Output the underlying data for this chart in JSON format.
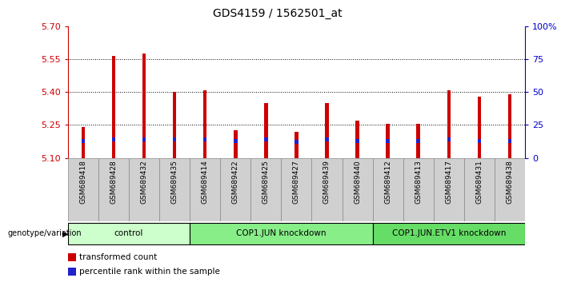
{
  "title": "GDS4159 / 1562501_at",
  "samples": [
    "GSM689418",
    "GSM689428",
    "GSM689432",
    "GSM689435",
    "GSM689414",
    "GSM689422",
    "GSM689425",
    "GSM689427",
    "GSM689439",
    "GSM689440",
    "GSM689412",
    "GSM689413",
    "GSM689417",
    "GSM689431",
    "GSM689438"
  ],
  "transformed_count": [
    5.24,
    5.565,
    5.575,
    5.4,
    5.41,
    5.225,
    5.35,
    5.22,
    5.35,
    5.27,
    5.255,
    5.255,
    5.41,
    5.38,
    5.39
  ],
  "percentile_rank_pct": [
    13,
    14,
    14,
    14,
    14,
    13,
    14,
    12,
    14,
    13,
    13,
    13,
    14,
    13,
    13
  ],
  "y_min": 5.1,
  "y_max": 5.7,
  "y_ticks": [
    5.1,
    5.25,
    5.4,
    5.55,
    5.7
  ],
  "y2_ticks": [
    0,
    25,
    50,
    75,
    100
  ],
  "y2_labels": [
    "0",
    "25",
    "50",
    "75",
    "100%"
  ],
  "groups": [
    {
      "label": "control",
      "start": 0,
      "end": 4
    },
    {
      "label": "COP1.JUN knockdown",
      "start": 4,
      "end": 10
    },
    {
      "label": "COP1.JUN.ETV1 knockdown",
      "start": 10,
      "end": 15
    }
  ],
  "bar_color": "#cc0000",
  "blue_color": "#2222cc",
  "bar_width": 0.12,
  "tick_color_left": "#cc0000",
  "tick_color_right": "#0000cc",
  "group_colors": [
    "#bbffbb",
    "#77dd77",
    "#77dd77"
  ],
  "sample_cell_bg": "#cccccc",
  "legend_red": "transformed count",
  "legend_blue": "percentile rank within the sample"
}
